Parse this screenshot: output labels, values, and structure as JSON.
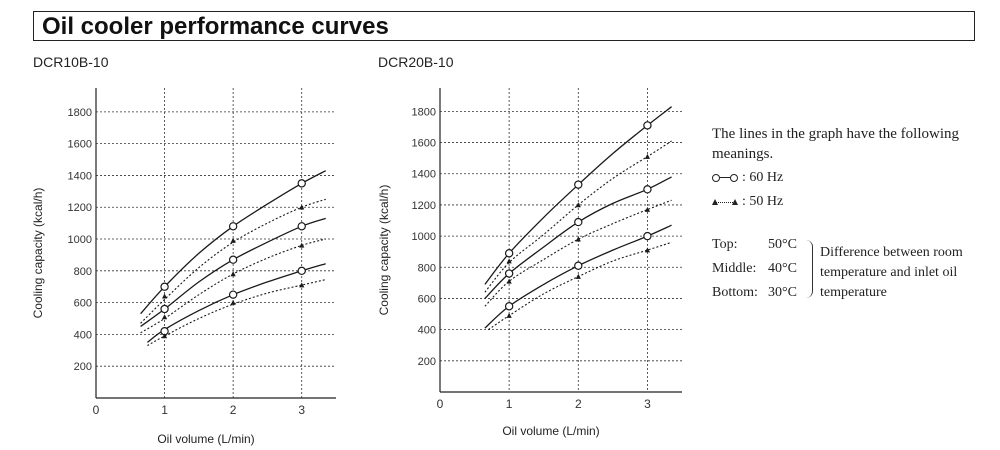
{
  "header": {
    "title": "Oil cooler performance curves"
  },
  "legend": {
    "intro": "The lines in the graph have the following meanings.",
    "hz60": ": 60 Hz",
    "hz50": ": 50 Hz",
    "rows": [
      {
        "name": "Top:",
        "value": "50°C"
      },
      {
        "name": "Middle:",
        "value": "40°C"
      },
      {
        "name": "Bottom:",
        "value": "30°C"
      }
    ],
    "note": "Difference between room temperature and inlet oil temperature"
  },
  "chart_data": [
    {
      "type": "line",
      "title": "DCR10B-10",
      "xlabel": "Oil volume (L/min)",
      "ylabel": "Cooling capacity (kcal/h)",
      "xlim": [
        0,
        3.5
      ],
      "ylim": [
        0,
        1950
      ],
      "x_ticks": [
        0,
        1,
        2,
        3
      ],
      "y_ticks": [
        200,
        400,
        600,
        800,
        1000,
        1200,
        1400,
        1600,
        1800
      ],
      "grid": true,
      "series": [
        {
          "name": "60 Hz",
          "temp": "50°C",
          "style": "solid",
          "curve": [
            [
              0.65,
              530
            ],
            [
              1,
              700
            ],
            [
              1.5,
              910
            ],
            [
              2,
              1080
            ],
            [
              2.5,
              1220
            ],
            [
              3,
              1350
            ],
            [
              3.35,
              1430
            ]
          ],
          "markers": [
            [
              1,
              700
            ],
            [
              2,
              1080
            ],
            [
              3,
              1350
            ]
          ]
        },
        {
          "name": "50 Hz",
          "temp": "50°C",
          "style": "dotted",
          "curve": [
            [
              0.65,
              470
            ],
            [
              1,
              620
            ],
            [
              1.5,
              820
            ],
            [
              2,
              980
            ],
            [
              2.5,
              1100
            ],
            [
              3,
              1200
            ],
            [
              3.35,
              1250
            ]
          ],
          "markers": [
            [
              1,
              640
            ],
            [
              2,
              990
            ],
            [
              3,
              1200
            ]
          ]
        },
        {
          "name": "60 Hz",
          "temp": "40°C",
          "style": "solid",
          "curve": [
            [
              0.65,
              450
            ],
            [
              1,
              560
            ],
            [
              1.5,
              730
            ],
            [
              2,
              870
            ],
            [
              2.5,
              980
            ],
            [
              3,
              1080
            ],
            [
              3.35,
              1130
            ]
          ],
          "markers": [
            [
              1,
              560
            ],
            [
              2,
              870
            ],
            [
              3,
              1080
            ]
          ]
        },
        {
          "name": "50 Hz",
          "temp": "40°C",
          "style": "dotted",
          "curve": [
            [
              0.65,
              410
            ],
            [
              1,
              500
            ],
            [
              1.5,
              650
            ],
            [
              2,
              780
            ],
            [
              2.5,
              880
            ],
            [
              3,
              960
            ],
            [
              3.35,
              1000
            ]
          ],
          "markers": [
            [
              1,
              510
            ],
            [
              2,
              780
            ],
            [
              3,
              960
            ]
          ]
        },
        {
          "name": "60 Hz",
          "temp": "30°C",
          "style": "solid",
          "curve": [
            [
              0.75,
              350
            ],
            [
              1,
              430
            ],
            [
              1.5,
              550
            ],
            [
              2,
              650
            ],
            [
              2.5,
              730
            ],
            [
              3,
              800
            ],
            [
              3.35,
              845
            ]
          ],
          "markers": [
            [
              1,
              420
            ],
            [
              2,
              650
            ],
            [
              3,
              800
            ]
          ]
        },
        {
          "name": "50 Hz",
          "temp": "30°C",
          "style": "dotted",
          "curve": [
            [
              0.75,
              330
            ],
            [
              1,
              390
            ],
            [
              1.5,
              500
            ],
            [
              2,
              590
            ],
            [
              2.5,
              660
            ],
            [
              3,
              710
            ],
            [
              3.35,
              745
            ]
          ],
          "markers": [
            [
              1,
              390
            ],
            [
              2,
              600
            ],
            [
              3,
              710
            ]
          ]
        }
      ]
    },
    {
      "type": "line",
      "title": "DCR20B-10",
      "xlabel": "Oil volume (L/min)",
      "ylabel": "Cooling capacity (kcal/h)",
      "xlim": [
        0,
        3.5
      ],
      "ylim": [
        0,
        1950
      ],
      "x_ticks": [
        0,
        1,
        2,
        3
      ],
      "y_ticks": [
        200,
        400,
        600,
        800,
        1000,
        1200,
        1400,
        1600,
        1800
      ],
      "grid": true,
      "series": [
        {
          "name": "60 Hz",
          "temp": "50°C",
          "style": "solid",
          "curve": [
            [
              0.65,
              690
            ],
            [
              1,
              890
            ],
            [
              1.5,
              1120
            ],
            [
              2,
              1330
            ],
            [
              2.5,
              1530
            ],
            [
              3,
              1710
            ],
            [
              3.35,
              1830
            ]
          ],
          "markers": [
            [
              1,
              890
            ],
            [
              2,
              1330
            ],
            [
              3,
              1710
            ]
          ]
        },
        {
          "name": "50 Hz",
          "temp": "50°C",
          "style": "dotted",
          "curve": [
            [
              0.65,
              640
            ],
            [
              1,
              830
            ],
            [
              1.5,
              1010
            ],
            [
              2,
              1200
            ],
            [
              2.5,
              1370
            ],
            [
              3,
              1510
            ],
            [
              3.35,
              1610
            ]
          ],
          "markers": [
            [
              1,
              840
            ],
            [
              2,
              1200
            ],
            [
              3,
              1510
            ]
          ]
        },
        {
          "name": "60 Hz",
          "temp": "40°C",
          "style": "solid",
          "curve": [
            [
              0.65,
              600
            ],
            [
              1,
              760
            ],
            [
              1.5,
              930
            ],
            [
              2,
              1090
            ],
            [
              2.5,
              1210
            ],
            [
              3,
              1300
            ],
            [
              3.35,
              1380
            ]
          ],
          "markers": [
            [
              1,
              760
            ],
            [
              2,
              1090
            ],
            [
              3,
              1300
            ]
          ]
        },
        {
          "name": "50 Hz",
          "temp": "40°C",
          "style": "dotted",
          "curve": [
            [
              0.65,
              550
            ],
            [
              1,
              710
            ],
            [
              1.5,
              850
            ],
            [
              2,
              980
            ],
            [
              2.5,
              1080
            ],
            [
              3,
              1170
            ],
            [
              3.35,
              1230
            ]
          ],
          "markers": [
            [
              1,
              710
            ],
            [
              2,
              980
            ],
            [
              3,
              1170
            ]
          ]
        },
        {
          "name": "60 Hz",
          "temp": "30°C",
          "style": "solid",
          "curve": [
            [
              0.65,
              410
            ],
            [
              1,
              550
            ],
            [
              1.5,
              690
            ],
            [
              2,
              810
            ],
            [
              2.5,
              910
            ],
            [
              3,
              1000
            ],
            [
              3.35,
              1070
            ]
          ],
          "markers": [
            [
              1,
              550
            ],
            [
              2,
              810
            ],
            [
              3,
              1000
            ]
          ]
        },
        {
          "name": "50 Hz",
          "temp": "30°C",
          "style": "dotted",
          "curve": [
            [
              0.7,
              400
            ],
            [
              1,
              490
            ],
            [
              1.5,
              630
            ],
            [
              2,
              740
            ],
            [
              2.5,
              840
            ],
            [
              3,
              910
            ],
            [
              3.35,
              960
            ]
          ],
          "markers": [
            [
              1,
              490
            ],
            [
              2,
              740
            ],
            [
              3,
              910
            ]
          ]
        }
      ]
    }
  ]
}
